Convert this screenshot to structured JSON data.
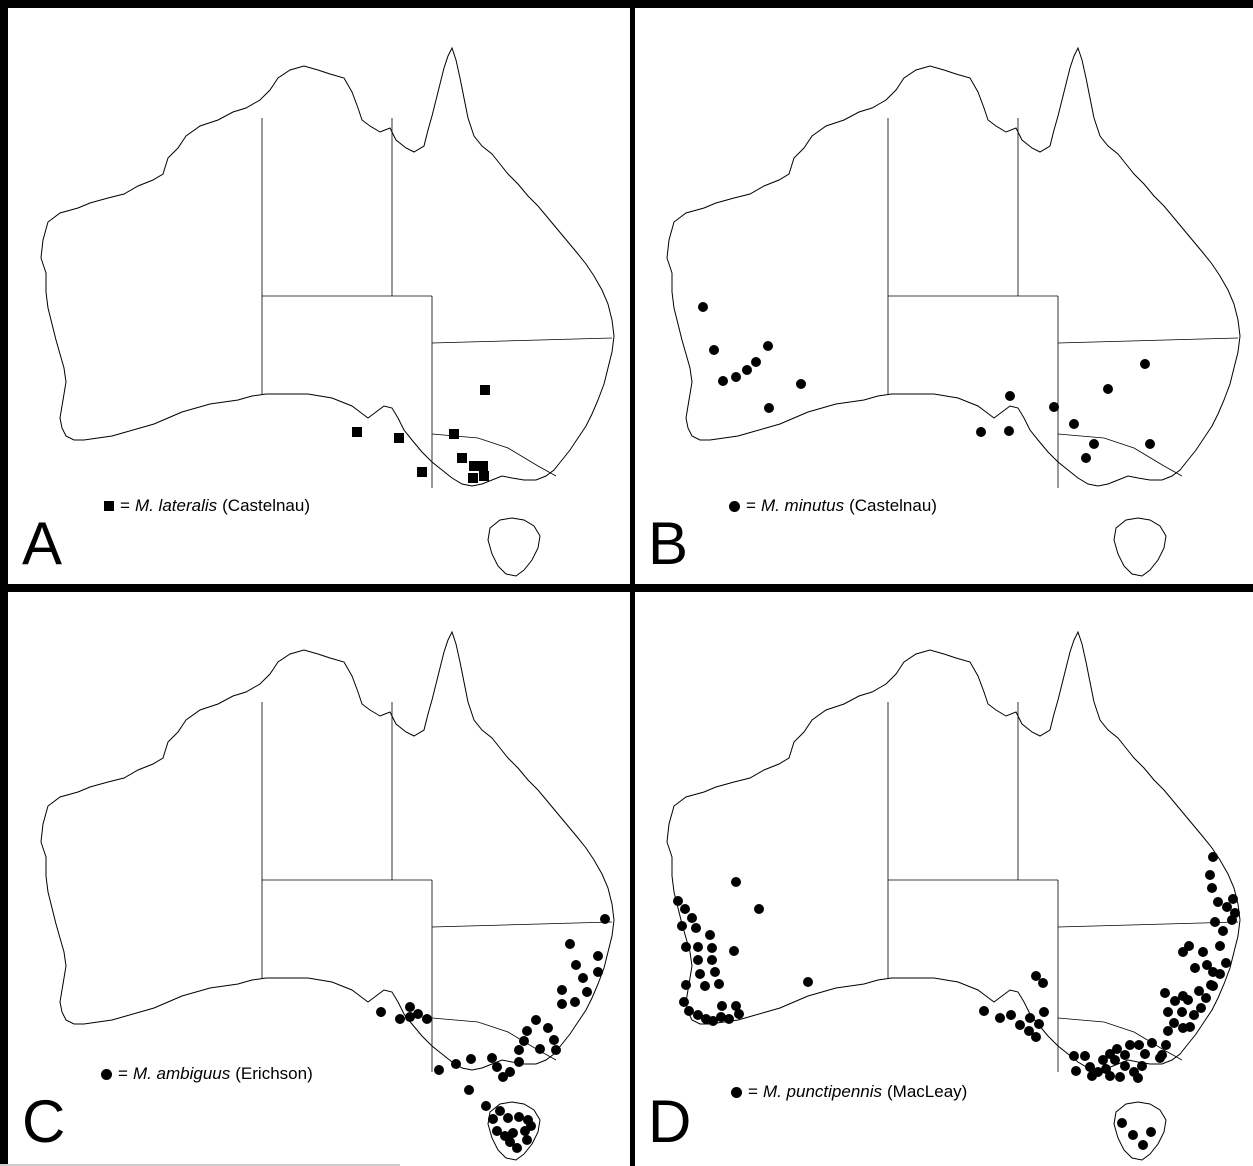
{
  "panels": [
    {
      "letter": "A",
      "marker": "square",
      "legend": {
        "symbol_eq": "=",
        "species": "M. lateralis",
        "author": "(Castelnau)"
      },
      "points": [
        [
          485,
          390
        ],
        [
          357,
          432
        ],
        [
          399,
          438
        ],
        [
          454,
          434
        ],
        [
          462,
          458
        ],
        [
          422,
          472
        ],
        [
          474,
          466
        ],
        [
          483,
          466
        ],
        [
          473,
          478
        ],
        [
          484,
          476
        ]
      ]
    },
    {
      "letter": "B",
      "marker": "dot",
      "legend": {
        "symbol_eq": "=",
        "species": "M. minutus",
        "author": "(Castelnau)"
      },
      "points": [
        [
          703,
          307
        ],
        [
          714,
          350
        ],
        [
          723,
          381
        ],
        [
          736,
          377
        ],
        [
          747,
          370
        ],
        [
          756,
          362
        ],
        [
          768,
          346
        ],
        [
          801,
          384
        ],
        [
          769,
          408
        ],
        [
          981,
          432
        ],
        [
          1009,
          431
        ],
        [
          1010,
          396
        ],
        [
          1054,
          407
        ],
        [
          1074,
          424
        ],
        [
          1094,
          444
        ],
        [
          1086,
          458
        ],
        [
          1108,
          389
        ],
        [
          1145,
          364
        ],
        [
          1150,
          444
        ]
      ]
    },
    {
      "letter": "C",
      "marker": "dot",
      "legend": {
        "symbol_eq": "=",
        "species": "M. ambiguus",
        "author": "(Erichson)"
      },
      "points": [
        [
          381,
          1012
        ],
        [
          400,
          1019
        ],
        [
          410,
          1007
        ],
        [
          410,
          1017
        ],
        [
          418,
          1014
        ],
        [
          427,
          1019
        ],
        [
          439,
          1070
        ],
        [
          456,
          1064
        ],
        [
          471,
          1059
        ],
        [
          492,
          1058
        ],
        [
          497,
          1067
        ],
        [
          503,
          1077
        ],
        [
          510,
          1072
        ],
        [
          519,
          1062
        ],
        [
          519,
          1050
        ],
        [
          524,
          1041
        ],
        [
          527,
          1031
        ],
        [
          536,
          1020
        ],
        [
          540,
          1049
        ],
        [
          548,
          1028
        ],
        [
          554,
          1040
        ],
        [
          556,
          1050
        ],
        [
          562,
          1004
        ],
        [
          562,
          990
        ],
        [
          570,
          944
        ],
        [
          575,
          1002
        ],
        [
          576,
          965
        ],
        [
          583,
          978
        ],
        [
          587,
          992
        ],
        [
          598,
          972
        ],
        [
          605,
          919
        ],
        [
          598,
          956
        ],
        [
          469,
          1090
        ],
        [
          486,
          1106
        ],
        [
          500,
          1111
        ],
        [
          508,
          1118
        ],
        [
          519,
          1117
        ],
        [
          528,
          1120
        ],
        [
          493,
          1119
        ],
        [
          497,
          1131
        ],
        [
          505,
          1136
        ],
        [
          513,
          1133
        ],
        [
          525,
          1131
        ],
        [
          510,
          1142
        ],
        [
          517,
          1148
        ],
        [
          527,
          1140
        ],
        [
          531,
          1126
        ]
      ]
    },
    {
      "letter": "D",
      "marker": "dot",
      "legend": {
        "symbol_eq": "=",
        "species": "M. punctipennis",
        "author": "(MacLeay)"
      },
      "points": [
        [
          678,
          901
        ],
        [
          685,
          909
        ],
        [
          692,
          918
        ],
        [
          696,
          928
        ],
        [
          682,
          926
        ],
        [
          686,
          947
        ],
        [
          698,
          947
        ],
        [
          710,
          935
        ],
        [
          712,
          948
        ],
        [
          712,
          960
        ],
        [
          698,
          960
        ],
        [
          700,
          974
        ],
        [
          705,
          986
        ],
        [
          715,
          972
        ],
        [
          719,
          984
        ],
        [
          686,
          985
        ],
        [
          684,
          1002
        ],
        [
          689,
          1011
        ],
        [
          698,
          1015
        ],
        [
          706,
          1019
        ],
        [
          713,
          1021
        ],
        [
          721,
          1017
        ],
        [
          729,
          1019
        ],
        [
          739,
          1014
        ],
        [
          736,
          1006
        ],
        [
          722,
          1006
        ],
        [
          736,
          882
        ],
        [
          759,
          909
        ],
        [
          734,
          951
        ],
        [
          808,
          982
        ],
        [
          984,
          1011
        ],
        [
          1000,
          1018
        ],
        [
          1011,
          1015
        ],
        [
          1020,
          1025
        ],
        [
          1030,
          1018
        ],
        [
          1029,
          1031
        ],
        [
          1039,
          1024
        ],
        [
          1036,
          1037
        ],
        [
          1044,
          1012
        ],
        [
          1036,
          976
        ],
        [
          1043,
          983
        ],
        [
          1074,
          1056
        ],
        [
          1085,
          1056
        ],
        [
          1090,
          1067
        ],
        [
          1076,
          1071
        ],
        [
          1092,
          1076
        ],
        [
          1103,
          1060
        ],
        [
          1110,
          1054
        ],
        [
          1117,
          1049
        ],
        [
          1125,
          1055
        ],
        [
          1130,
          1045
        ],
        [
          1139,
          1045
        ],
        [
          1145,
          1054
        ],
        [
          1152,
          1043
        ],
        [
          1160,
          1058
        ],
        [
          1142,
          1066
        ],
        [
          1134,
          1072
        ],
        [
          1125,
          1066
        ],
        [
          1115,
          1060
        ],
        [
          1106,
          1069
        ],
        [
          1098,
          1072
        ],
        [
          1110,
          1076
        ],
        [
          1120,
          1077
        ],
        [
          1138,
          1078
        ],
        [
          1162,
          1055
        ],
        [
          1166,
          1045
        ],
        [
          1168,
          1031
        ],
        [
          1174,
          1023
        ],
        [
          1168,
          1012
        ],
        [
          1175,
          1001
        ],
        [
          1182,
          1012
        ],
        [
          1183,
          1028
        ],
        [
          1190,
          1027
        ],
        [
          1194,
          1015
        ],
        [
          1201,
          1008
        ],
        [
          1206,
          998
        ],
        [
          1213,
          986
        ],
        [
          1220,
          974
        ],
        [
          1226,
          963
        ],
        [
          1220,
          946
        ],
        [
          1223,
          931
        ],
        [
          1232,
          920
        ],
        [
          1227,
          907
        ],
        [
          1218,
          902
        ],
        [
          1212,
          888
        ],
        [
          1210,
          875
        ],
        [
          1213,
          857
        ],
        [
          1233,
          899
        ],
        [
          1235,
          913
        ],
        [
          1215,
          922
        ],
        [
          1189,
          946
        ],
        [
          1183,
          952
        ],
        [
          1203,
          952
        ],
        [
          1195,
          968
        ],
        [
          1207,
          965
        ],
        [
          1213,
          972
        ],
        [
          1183,
          996
        ],
        [
          1165,
          993
        ],
        [
          1188,
          1000
        ],
        [
          1199,
          991
        ],
        [
          1211,
          985
        ],
        [
          1122,
          1123
        ],
        [
          1133,
          1135
        ],
        [
          1151,
          1132
        ],
        [
          1143,
          1145
        ]
      ]
    }
  ]
}
